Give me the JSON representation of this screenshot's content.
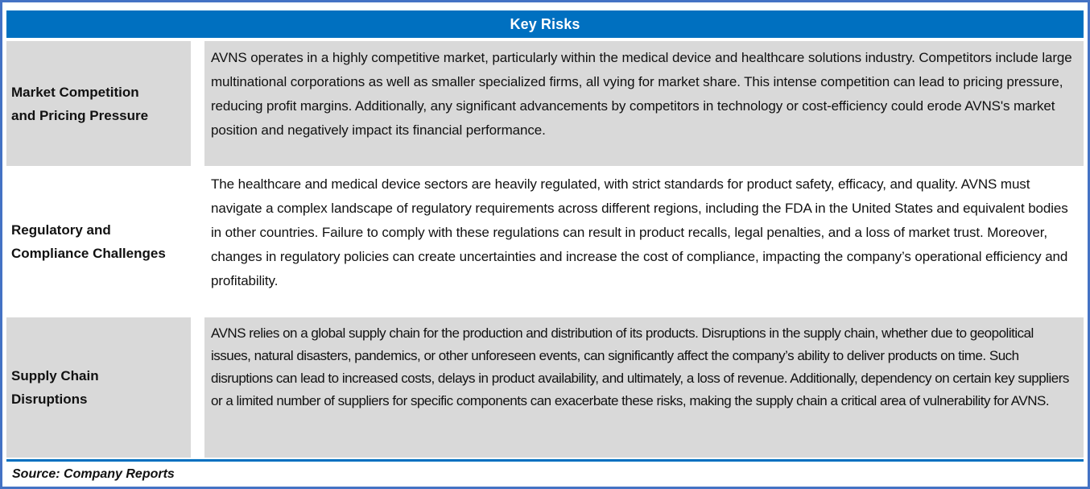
{
  "title": "Key Risks",
  "colors": {
    "header_bg": "#0070C0",
    "header_text": "#FFFFFF",
    "row_shade": "#D9D9D9",
    "frame": "#4472C4",
    "rule": "#0070C0",
    "text": "#111111"
  },
  "table": {
    "rows": [
      {
        "label": "Market Competition\nand Pricing Pressure",
        "description": "AVNS operates in a highly competitive market, particularly within the medical device and healthcare solutions industry. Competitors include large multinational corporations as well as smaller specialized firms, all vying for market share. This intense competition can lead to pricing pressure, reducing profit margins. Additionally, any significant advancements by competitors in technology or cost-efficiency could erode AVNS's market position and negatively impact its financial performance."
      },
      {
        "label": "Regulatory and\nCompliance Challenges",
        "description": "The healthcare and medical device sectors are heavily regulated, with strict standards for product safety, efficacy, and quality. AVNS must navigate a complex landscape of regulatory requirements across different regions, including the FDA in the United States and equivalent bodies in other countries. Failure to comply with these regulations can result in product recalls, legal penalties, and a loss of market trust. Moreover, changes in regulatory policies can create uncertainties and increase the cost of compliance, impacting the company’s operational efficiency and profitability."
      },
      {
        "label": "Supply Chain\nDisruptions",
        "description": "AVNS relies on a global supply chain for the production and distribution of its products. Disruptions in the supply chain, whether due to geopolitical issues, natural disasters, pandemics, or other unforeseen events, can significantly affect the company’s ability to deliver products on time. Such disruptions can lead to increased costs, delays in product availability, and ultimately, a loss of revenue. Additionally, dependency on certain key suppliers or a limited number of suppliers for specific components can exacerbate these risks, making the supply chain a critical area of vulnerability for AVNS."
      }
    ]
  },
  "footer": {
    "source": "Source: Company Reports"
  }
}
